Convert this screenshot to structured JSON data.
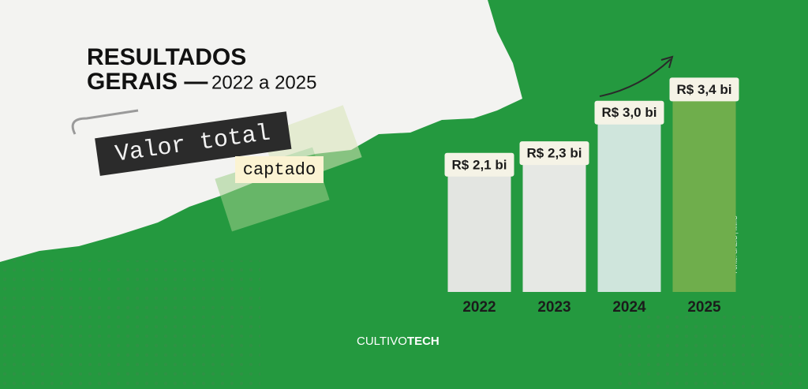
{
  "chart_data": {
    "type": "bar",
    "title_lines": [
      "RESULTADOS",
      "GERAIS —"
    ],
    "subtitle": "2022 a 2025",
    "label": "Valor total",
    "label_highlight": "captado",
    "categories": [
      "2022",
      "2023",
      "2024",
      "2025"
    ],
    "values": [
      2.1,
      2.3,
      3.0,
      3.4
    ],
    "value_labels": [
      "R$ 2,1 bi",
      "R$ 2,3 bi",
      "R$ 3,0 bi",
      "R$ 3,4 bi"
    ],
    "colors": [
      "#e3e5e1",
      "#e6e8e4",
      "#cfe5dc",
      "#6fae4c"
    ],
    "ylim": [
      0,
      3.5
    ],
    "source": "Fonte: SALIC | MinC"
  },
  "brand": {
    "light": "CULTIVO",
    "bold": "TECH"
  }
}
